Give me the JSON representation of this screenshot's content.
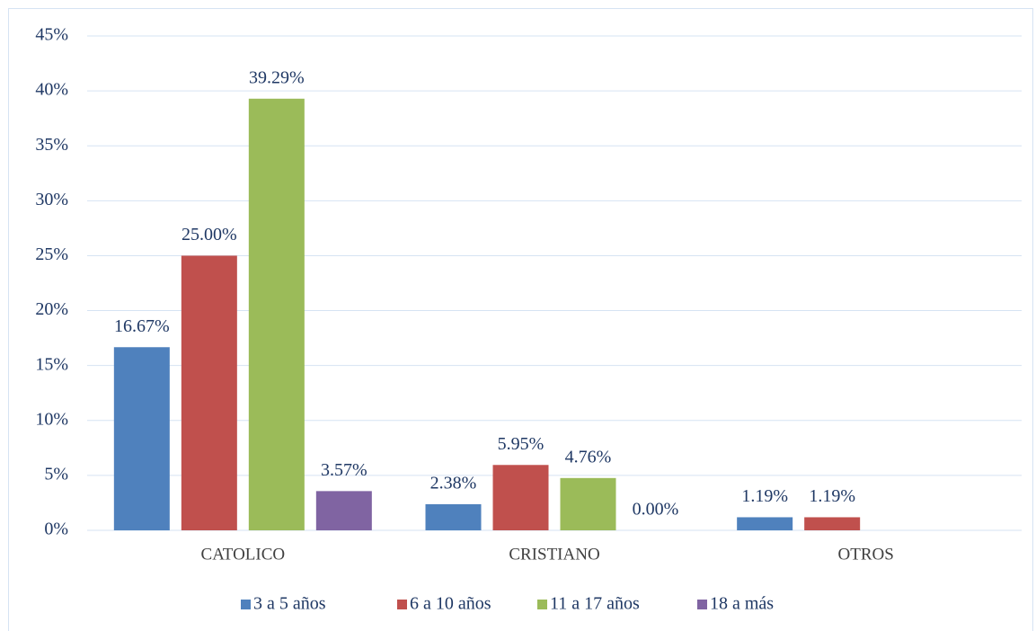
{
  "chart_data": {
    "type": "bar",
    "categories": [
      "CATOLICO",
      "CRISTIANO",
      "OTROS"
    ],
    "series": [
      {
        "name": "3 a 5 años",
        "color": "#4f81bd",
        "values": [
          16.67,
          2.38,
          1.19
        ],
        "value_labels": [
          "16.67%",
          "2.38%",
          "1.19%"
        ]
      },
      {
        "name": "6 a 10 años",
        "color": "#c0504d",
        "values": [
          25.0,
          5.95,
          1.19
        ],
        "value_labels": [
          "25.00%",
          "5.95%",
          "1.19%"
        ]
      },
      {
        "name": "11 a 17 años",
        "color": "#9bbb59",
        "values": [
          39.29,
          4.76,
          null
        ],
        "value_labels": [
          "39.29%",
          "4.76%",
          null
        ]
      },
      {
        "name": "18 a más",
        "color": "#8064a2",
        "values": [
          3.57,
          0.0,
          null
        ],
        "value_labels": [
          "3.57%",
          "0.00%",
          null
        ]
      }
    ],
    "ylim": [
      0,
      45
    ],
    "yticks": [
      {
        "value": 0,
        "label": "0%"
      },
      {
        "value": 5,
        "label": "5%"
      },
      {
        "value": 10,
        "label": "10%"
      },
      {
        "value": 15,
        "label": "15%"
      },
      {
        "value": 20,
        "label": "20%"
      },
      {
        "value": 25,
        "label": "25%"
      },
      {
        "value": 30,
        "label": "30%"
      },
      {
        "value": 35,
        "label": "35%"
      },
      {
        "value": 40,
        "label": "40%"
      },
      {
        "value": 45,
        "label": "45%"
      }
    ],
    "grid": true,
    "legend": "bottom"
  }
}
